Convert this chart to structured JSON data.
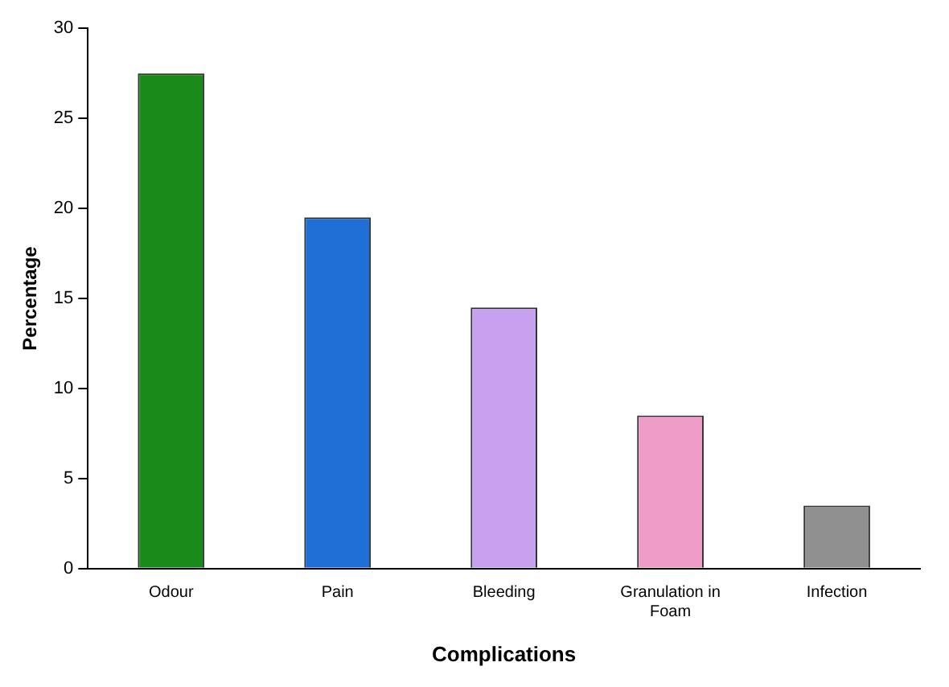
{
  "chart_data": {
    "type": "bar",
    "xlabel": "Complications",
    "ylabel": "Percentage",
    "categories": [
      "Odour",
      "Pain",
      "Bleeding",
      "Granulation in Foam",
      "Infection"
    ],
    "values": [
      27.5,
      19.5,
      14.5,
      8.5,
      3.5
    ],
    "colors": [
      "#1a8a1a",
      "#1f6fd6",
      "#c8a0f0",
      "#f09cc8",
      "#909090"
    ],
    "ylim": [
      0,
      30
    ],
    "yticks": [
      0,
      5,
      10,
      15,
      20,
      25,
      30
    ],
    "grid": false,
    "legend": false
  }
}
